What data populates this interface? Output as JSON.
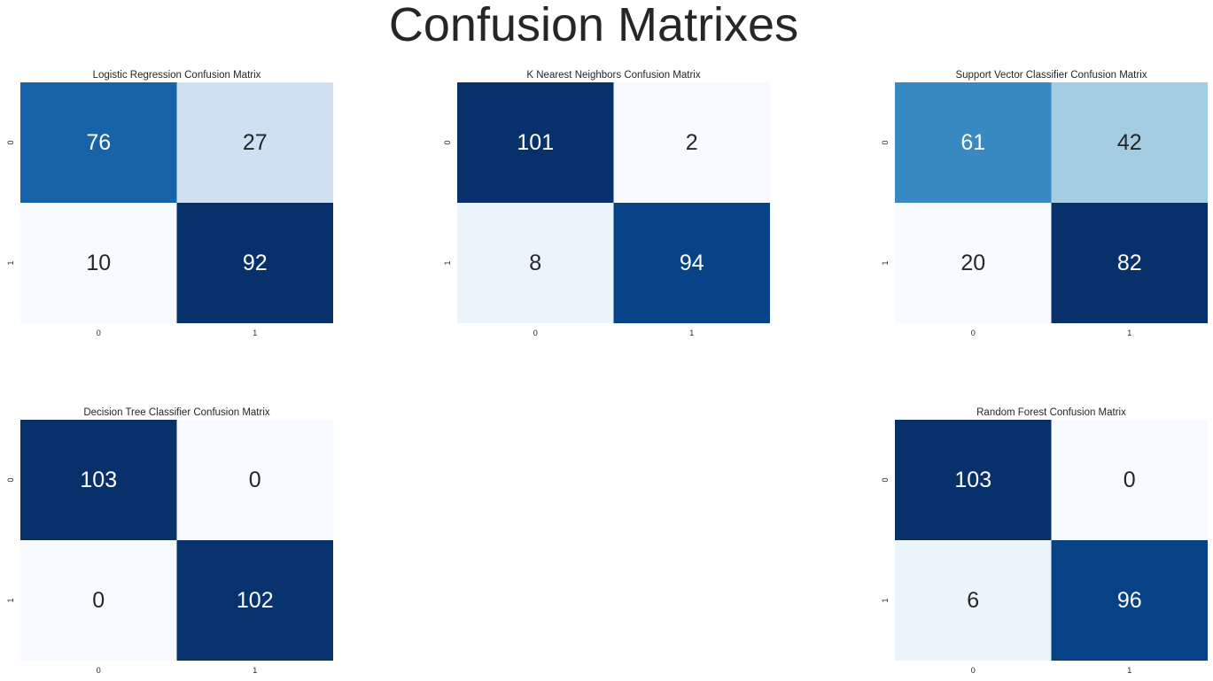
{
  "figure": {
    "title": "Confusion Matrixes"
  },
  "colormap": {
    "name": "Blues",
    "stops": [
      "#f7fbff",
      "#deebf7",
      "#c6dbef",
      "#9ecae1",
      "#6baed6",
      "#4292c6",
      "#2171b5",
      "#08519c",
      "#08306b"
    ],
    "annotation_dark_text": "#262626",
    "annotation_light_text": "#ffffff"
  },
  "chart_data": [
    {
      "type": "heatmap",
      "title": "Logistic Regression Confusion Matrix",
      "x_tick_labels": [
        "0",
        "1"
      ],
      "y_tick_labels": [
        "0",
        "1"
      ],
      "values": [
        [
          76,
          27
        ],
        [
          10,
          92
        ]
      ],
      "colorbar": false
    },
    {
      "type": "heatmap",
      "title": "K Nearest Neighbors Confusion Matrix",
      "x_tick_labels": [
        "0",
        "1"
      ],
      "y_tick_labels": [
        "0",
        "1"
      ],
      "values": [
        [
          101,
          2
        ],
        [
          8,
          94
        ]
      ],
      "colorbar": false
    },
    {
      "type": "heatmap",
      "title": "Support Vector Classifier Confusion Matrix",
      "x_tick_labels": [
        "0",
        "1"
      ],
      "y_tick_labels": [
        "0",
        "1"
      ],
      "values": [
        [
          61,
          42
        ],
        [
          20,
          82
        ]
      ],
      "colorbar": false
    },
    {
      "type": "heatmap",
      "title": "Decision Tree Classifier Confusion Matrix",
      "x_tick_labels": [
        "0",
        "1"
      ],
      "y_tick_labels": [
        "0",
        "1"
      ],
      "values": [
        [
          103,
          0
        ],
        [
          0,
          102
        ]
      ],
      "colorbar": false
    },
    {
      "type": "heatmap",
      "title": "Random Forest Confusion Matrix",
      "x_tick_labels": [
        "0",
        "1"
      ],
      "y_tick_labels": [
        "0",
        "1"
      ],
      "values": [
        [
          103,
          0
        ],
        [
          6,
          96
        ]
      ],
      "colorbar": false
    }
  ]
}
